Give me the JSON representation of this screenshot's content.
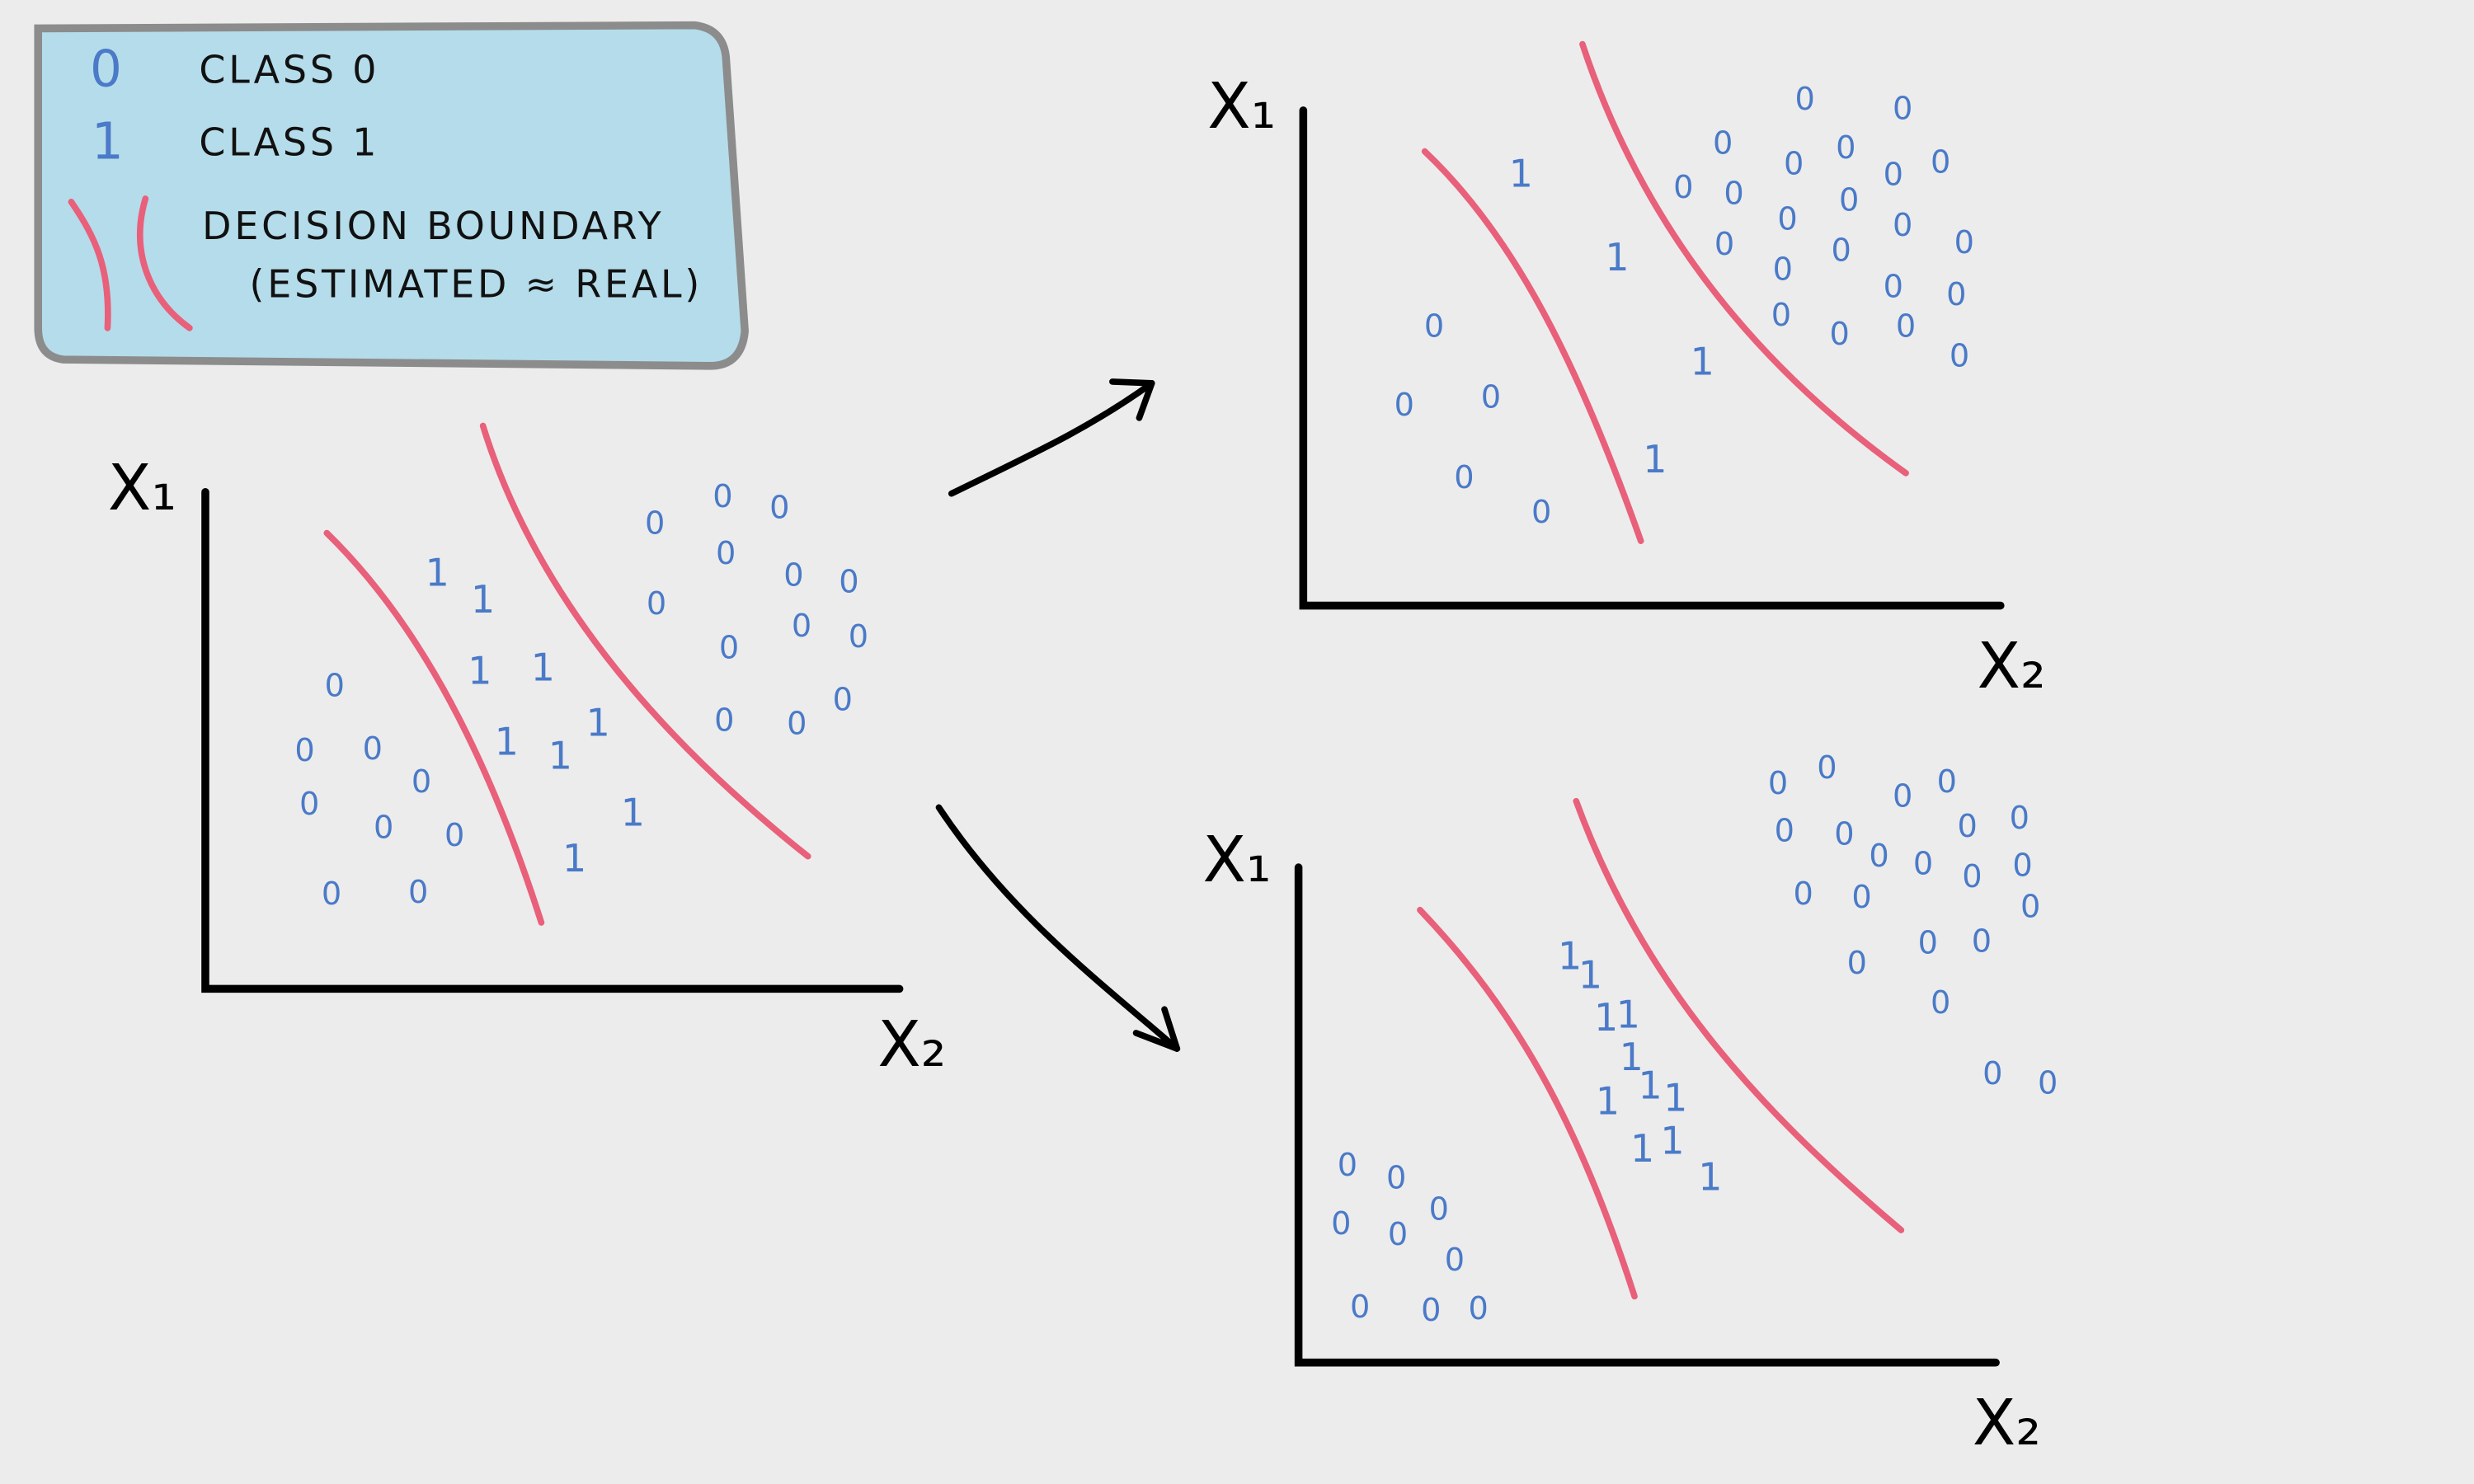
{
  "legend": {
    "items": [
      {
        "symbol": "0",
        "label": "CLASS 0"
      },
      {
        "symbol": "1",
        "label": "CLASS 1"
      },
      {
        "label": "DECISION BOUNDARY",
        "note": "(ESTIMATED ≈ REAL)"
      }
    ]
  },
  "plots": [
    {
      "y_label": "X₁",
      "x_label": "X₂"
    },
    {
      "y_label": "X₁",
      "x_label": "X₂"
    },
    {
      "y_label": "X₁",
      "x_label": "X₂"
    }
  ]
}
